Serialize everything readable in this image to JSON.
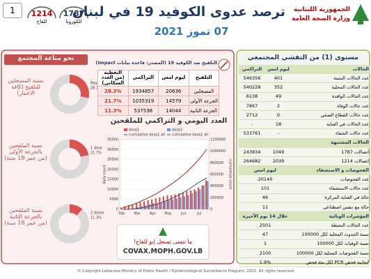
{
  "header": {
    "box": "1",
    "hotlines": [
      {
        "number": "1214",
        "label": "للقاح"
      },
      {
        "number": "1787",
        "label": "للكورونا"
      }
    ],
    "title": "ترصد عدوى الكوفيد 19 في لبنان",
    "date": "07 تموز 2021",
    "ministry": [
      "الجمهورية اللبنانية",
      "وزارة الصحة العامة"
    ]
  },
  "immunity": {
    "title": "نحو مناعة المجتمع",
    "donuts": [
      {
        "label": "نسبة المسجلين للتلقيح (كافة الاعمار)",
        "name": "Registered",
        "value": 28.3,
        "value_label": "28.3%"
      },
      {
        "label": "نسبة الملقحين بالجرعة الأولى (من عمر 18 سنة)",
        "name": "1 dose",
        "value": 21.7,
        "value_label": "21.7%"
      },
      {
        "label": "نسبة الملقحين بالجرعة الثانية (من عمر 18 سنة)",
        "name": "2 doses",
        "value": 11.3,
        "value_label": "11.3%"
      }
    ]
  },
  "vaccination_table": {
    "title": "التلقيح ضد الكوفيد 19 (المصدر: قاعدة بيانات Impact)",
    "columns": [
      "التلقيح",
      "ليوم امس",
      "التراكمي",
      "التغطية (من العدد السكاني)"
    ],
    "rows": [
      [
        "المسجلين",
        "20636",
        "1934857",
        "28.3%"
      ],
      [
        "الجرعة الأولى",
        "14579",
        "1035319",
        "21.7%"
      ],
      [
        "الجرعة الثانية",
        "14044",
        "537538",
        "11.3%"
      ]
    ]
  },
  "chart_data": {
    "type": "bar",
    "title": "العدد اليومي و التراكمي للملقحين",
    "ylabel": "daily count",
    "y2label": "cumulative count",
    "categories": [
      "Feb",
      null,
      null,
      null,
      "Mar",
      null,
      null,
      null,
      "Apr",
      null,
      null,
      null,
      "May",
      null,
      null,
      null,
      "Jun",
      null,
      null,
      null,
      "Jul",
      null,
      null
    ],
    "series": [
      {
        "name": "dose1",
        "type": "bar",
        "color": "#e0544b",
        "values": [
          800,
          1500,
          2000,
          2500,
          3000,
          3500,
          4000,
          4500,
          5000,
          5500,
          6000,
          6500,
          7000,
          7000,
          7500,
          8000,
          8500,
          9000,
          9500,
          10000,
          11000,
          12000,
          14500
        ]
      },
      {
        "name": "dose2",
        "type": "bar",
        "color": "#6a8fd6",
        "values": [
          0,
          0,
          0,
          500,
          1000,
          1500,
          2000,
          2500,
          3000,
          3000,
          3500,
          4000,
          4500,
          5000,
          5500,
          6000,
          6500,
          7000,
          8000,
          9000,
          10000,
          12000,
          14000
        ]
      },
      {
        "name": "cumulative dose1 all",
        "type": "line",
        "axis": "y2",
        "color": "#b22222",
        "values": [
          20000,
          40000,
          60000,
          85000,
          110000,
          140000,
          170000,
          200000,
          235000,
          270000,
          310000,
          350000,
          395000,
          440000,
          490000,
          540000,
          595000,
          655000,
          720000,
          790000,
          865000,
          945000,
          1035000
        ]
      },
      {
        "name": "cumulative dose2 all",
        "type": "line",
        "axis": "y2",
        "color": "#2e4a8b",
        "values": [
          0,
          0,
          0,
          5000,
          12000,
          22000,
          35000,
          50000,
          68000,
          88000,
          110000,
          135000,
          160000,
          190000,
          220000,
          255000,
          290000,
          330000,
          375000,
          420000,
          465000,
          505000,
          537000
        ]
      }
    ],
    "ylim": [
      0,
      35000
    ],
    "yticks": [
      0,
      5000,
      10000,
      15000,
      20000,
      25000,
      30000,
      35000
    ],
    "y2lim": [
      0,
      1200000
    ],
    "y2ticks": [
      0,
      200000,
      400000,
      600000,
      800000,
      1000000,
      1200000
    ],
    "grid": true
  },
  "covax": {
    "text": "ما تنسى تسجل إنو للقاح!",
    "url": "COVAX.MOPH.GOV.LB"
  },
  "outbreak": {
    "title": "مستوى (1) من التفشي المجتمعي",
    "sections": [
      {
        "title": "الحالات",
        "columns": [
          "ليوم امس",
          "التراكمي"
        ],
        "rows": [
          [
            "عدد الحالات المثبتة",
            "401",
            "546356"
          ],
          [
            "عدد الحالات المحلية",
            "352",
            "540228"
          ],
          [
            "عدد الحالات الوافدة",
            "49",
            "6138"
          ],
          [
            "عدد حالات الوفاة",
            "2",
            "7867"
          ],
          [
            "عدد حالات القطاع الصحي",
            "0",
            "2712"
          ],
          [
            "عدد الحالات في العناية",
            "18",
            "-"
          ],
          [
            "عدد حالات الشفاء",
            "-",
            "533761"
          ]
        ]
      },
      {
        "title": "الحالات المشتبهة",
        "rows": [
          [
            "اتصالات 1787",
            "1049",
            "243834"
          ],
          [
            "اتصالات 1214",
            "2039",
            "264682"
          ]
        ]
      },
      {
        "title": "الفحوصات و الاستشفاء",
        "subtitle": "ليوم امس",
        "rows": [
          [
            "عدد الفحوصات",
            "20140"
          ],
          [
            "عدد حالات الاستشفاء",
            "101"
          ],
          [
            "حالة في العناية المركزة",
            "46"
          ],
          [
            "حالة مع تنفس اصطناعي",
            "11"
          ]
        ]
      },
      {
        "title": "المؤشرات الوبائية",
        "subtitle": "خلال 14 يوم الأخيرة",
        "rows": [
          [
            "عدد الحالات النشطة",
            "2501"
          ],
          [
            "نسبة الحدوث المحلية لكل 100000",
            "47"
          ],
          [
            "نسبة الوفيات لكل 100000",
            "1"
          ],
          [
            "نسبة الفحوصات المحلية لكل 100000",
            "2100"
          ],
          [
            "إيجابية فحص PCR لكل مئة فحص",
            "1.9%"
          ]
        ]
      }
    ]
  },
  "footer": "© Copyright Lebanese Ministry of Public Health / Epidemiological Surveillance Program, 2021. All rights reserved"
}
